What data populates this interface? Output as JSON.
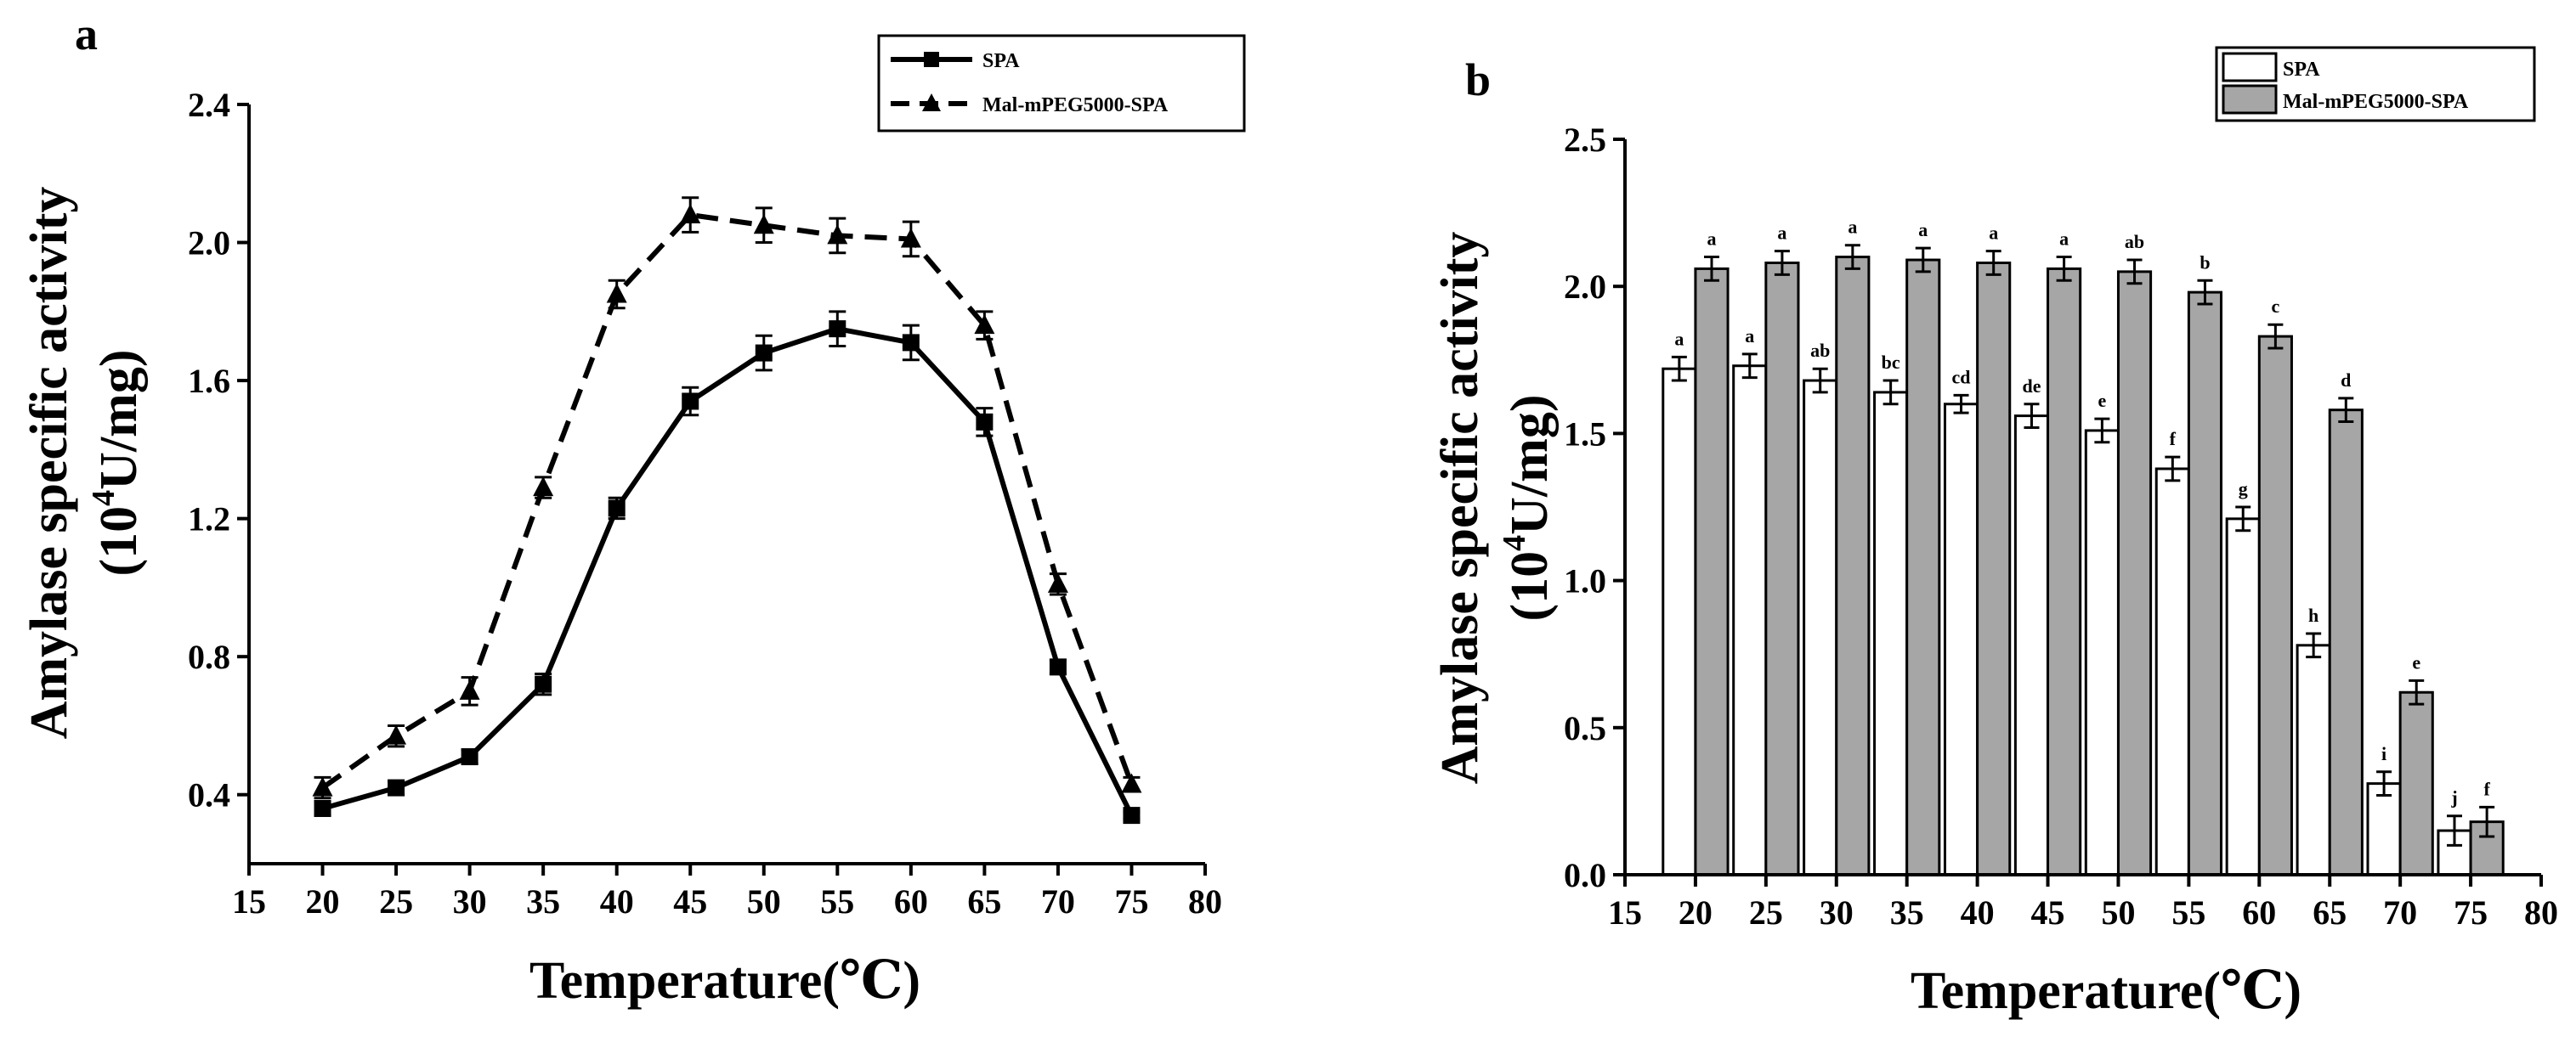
{
  "figure": {
    "panel_a_label": "a",
    "panel_b_label": "b"
  },
  "chart_data": [
    {
      "type": "line",
      "panel": "a",
      "title": "",
      "xlabel": "Temperature(℃)",
      "ylabel_line1": "Amylase specific activity",
      "ylabel_line2_prefix": "(10",
      "ylabel_line2_sup": "4",
      "ylabel_line2_suffix": "U/mg)",
      "xlim": [
        15,
        80
      ],
      "ylim": [
        0.2,
        2.4
      ],
      "xticks": [
        "15",
        "20",
        "25",
        "30",
        "35",
        "40",
        "45",
        "50",
        "55",
        "60",
        "65",
        "70",
        "75",
        "80"
      ],
      "yticks": [
        "0.4",
        "0.8",
        "1.2",
        "1.6",
        "2.0",
        "2.4"
      ],
      "x": [
        20,
        25,
        30,
        35,
        40,
        45,
        50,
        55,
        60,
        65,
        70,
        75
      ],
      "series": [
        {
          "name": "SPA",
          "line": "solid",
          "marker": "square",
          "values": [
            0.36,
            0.42,
            0.51,
            0.72,
            1.23,
            1.54,
            1.68,
            1.75,
            1.71,
            1.48,
            0.77,
            0.34
          ],
          "errors": [
            0.02,
            0.02,
            0.02,
            0.03,
            0.03,
            0.04,
            0.05,
            0.05,
            0.05,
            0.04,
            0.02,
            0.01
          ]
        },
        {
          "name": "Mal-mPEG5000-SPA",
          "line": "dashed",
          "marker": "triangle",
          "values": [
            0.42,
            0.57,
            0.7,
            1.29,
            1.85,
            2.08,
            2.05,
            2.02,
            2.01,
            1.76,
            1.01,
            0.43
          ],
          "errors": [
            0.03,
            0.03,
            0.04,
            0.03,
            0.04,
            0.05,
            0.05,
            0.05,
            0.05,
            0.04,
            0.03,
            0.02
          ]
        }
      ],
      "legend_position": "top-right"
    },
    {
      "type": "bar",
      "panel": "b",
      "title": "",
      "xlabel": "Temperature(℃)",
      "ylabel_line1": "Amylase specific activity",
      "ylabel_line2_prefix": "(10",
      "ylabel_line2_sup": "4",
      "ylabel_line2_suffix": "U/mg)",
      "xlim": [
        15,
        80
      ],
      "ylim": [
        0,
        2.5
      ],
      "xticks": [
        "15",
        "20",
        "25",
        "30",
        "35",
        "40",
        "45",
        "50",
        "55",
        "60",
        "65",
        "70",
        "75",
        "80"
      ],
      "yticks": [
        "0.0",
        "0.5",
        "1.0",
        "1.5",
        "2.0",
        "2.5"
      ],
      "categories": [
        20,
        25,
        30,
        35,
        40,
        45,
        50,
        55,
        60,
        65,
        70,
        75
      ],
      "series": [
        {
          "name": "SPA",
          "fill": "#ffffff",
          "values": [
            1.72,
            1.73,
            1.68,
            1.64,
            1.6,
            1.56,
            1.51,
            1.38,
            1.21,
            0.78,
            0.31,
            0.15
          ],
          "errors": [
            0.04,
            0.04,
            0.04,
            0.04,
            0.03,
            0.04,
            0.04,
            0.04,
            0.04,
            0.04,
            0.04,
            0.05
          ],
          "labels": [
            "a",
            "a",
            "ab",
            "bc",
            "cd",
            "de",
            "e",
            "f",
            "g",
            "h",
            "i",
            "j"
          ]
        },
        {
          "name": "Mal-mPEG5000-SPA",
          "fill": "#a6a6a6",
          "values": [
            2.06,
            2.08,
            2.1,
            2.09,
            2.08,
            2.06,
            2.05,
            1.98,
            1.83,
            1.58,
            0.62,
            0.18
          ],
          "errors": [
            0.04,
            0.04,
            0.04,
            0.04,
            0.04,
            0.04,
            0.04,
            0.04,
            0.04,
            0.04,
            0.04,
            0.05
          ],
          "labels": [
            "a",
            "a",
            "a",
            "a",
            "a",
            "a",
            "ab",
            "b",
            "c",
            "d",
            "e",
            "f"
          ]
        }
      ],
      "legend_position": "top-right"
    }
  ]
}
